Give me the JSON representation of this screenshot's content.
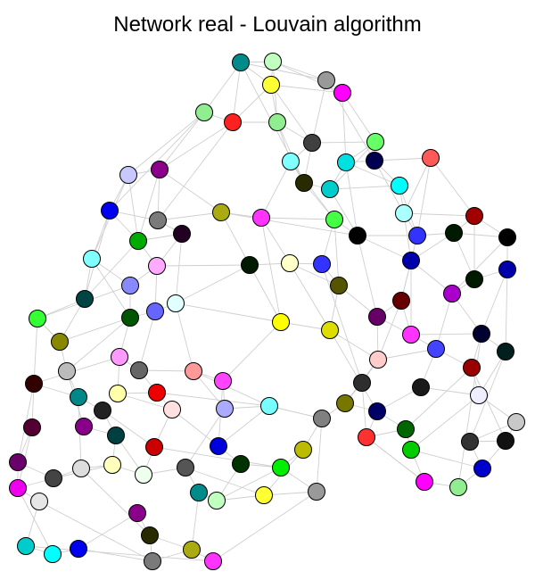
{
  "title": "Network real - Louvain algorithm",
  "colors": {
    "edge": "#cfcfcf",
    "node_stroke": "#000000",
    "background": "#ffffff"
  },
  "community_colors": [
    "#008b8b",
    "#c0ffc0",
    "#ffff33",
    "#999999",
    "#ff00ff",
    "#90ee90",
    "#ff2020",
    "#404040",
    "#66ff66",
    "#80ffff",
    "#00e0e0",
    "#000050",
    "#ff5a5a",
    "#c8c8ff",
    "#8b008b",
    "#2a2a00",
    "#00cccc",
    "#00ffff",
    "#0000ee",
    "#7a7a7a",
    "#aaaa11",
    "#ff33ff",
    "#44ff44",
    "#aaffff",
    "#a00000",
    "#00aa00",
    "#220022",
    "#000000",
    "#ffffc8",
    "#3333ff",
    "#001a00",
    "#0000aa",
    "#ffaaff",
    "#8888ff",
    "#004444",
    "#e0ffff",
    "#555500",
    "#660000",
    "#aa00cc",
    "#33ff33",
    "#005500",
    "#6666ff",
    "#ffff00",
    "#dddd00",
    "#660066",
    "#888800",
    "#000030",
    "#002020",
    "#ff99ff",
    "#4444ff",
    "#bbbbbb",
    "#666666",
    "#ff9999",
    "#ffcccc",
    "#990000",
    "#330000",
    "#008888",
    "#ffffaa",
    "#ee0000",
    "#ff44ff",
    "#2e2e2e",
    "#1a1a1a",
    "#eeeeff",
    "#880088",
    "#222222",
    "#ffe0e0",
    "#aaaaff",
    "#77ffff",
    "#808080",
    "#777700",
    "#000066",
    "#c8c8c8",
    "#550033",
    "#004040",
    "#cc0000",
    "#006600",
    "#0000dd",
    "#bbbb00",
    "#ff3030",
    "#333333",
    "#00cc00",
    "#111111",
    "#6a006a",
    "#dddddd",
    "#ffffbb",
    "#eeffee",
    "#555555",
    "#003300",
    "#00ee00",
    "#444444",
    "#0000cc",
    "#ee00ee",
    "#e6e6e6"
  ]
}
